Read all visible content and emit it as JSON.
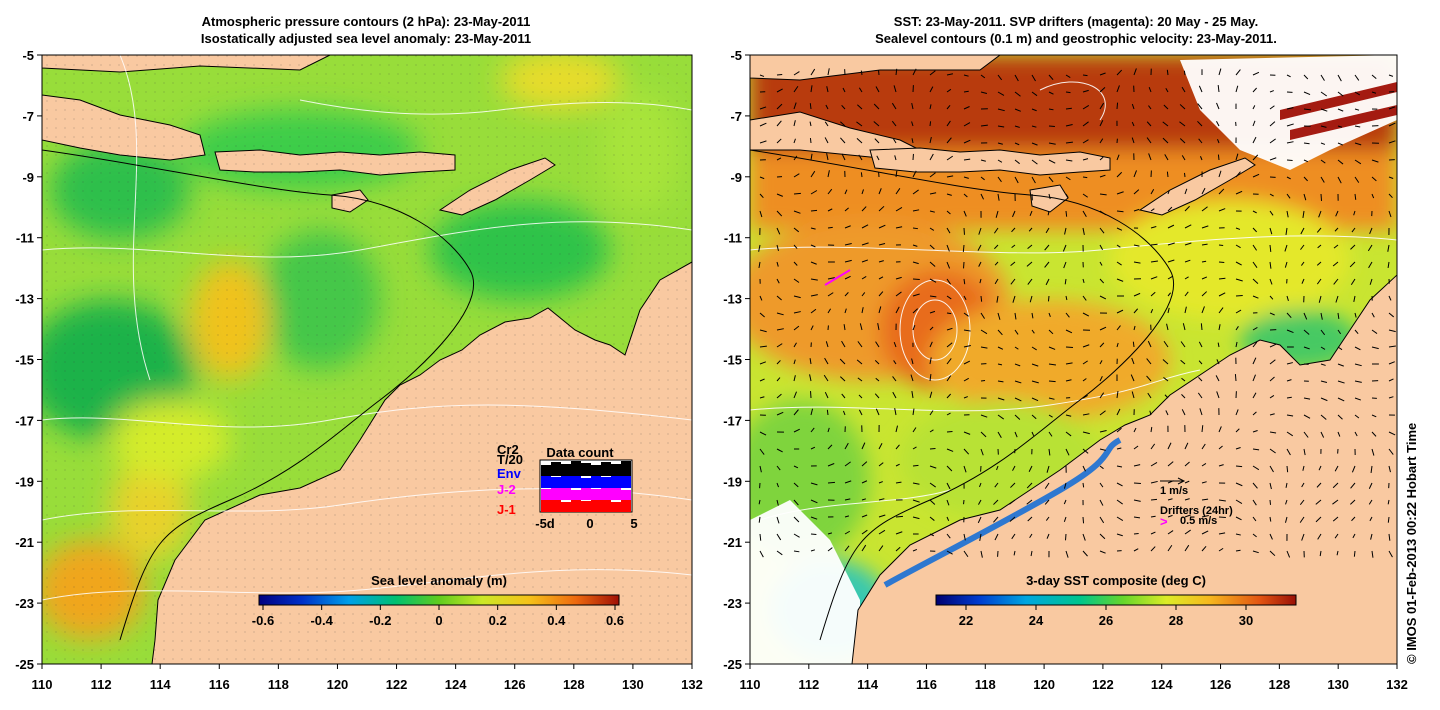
{
  "left_panel": {
    "title_line1": "Atmospheric pressure contours (2 hPa): 23-May-2011",
    "title_line2": "Isostatically adjusted sea level anomaly: 23-May-2011",
    "colorbar": {
      "label": "Sea level anomaly (m)",
      "ticks": [
        "-0.6",
        "-0.4",
        "-0.2",
        "0",
        "0.2",
        "0.4",
        "0.6"
      ]
    },
    "inset": {
      "title": "Data count",
      "satellites": [
        {
          "label": "Cr2",
          "color": "#000000"
        },
        {
          "label": "T/20",
          "color": "#000000"
        },
        {
          "label": "Env",
          "color": "#0000ff"
        },
        {
          "label": "J-2",
          "color": "#ff00ff"
        },
        {
          "label": "J-1",
          "color": "#ff0000"
        }
      ],
      "x_ticks": [
        "-5d",
        "0",
        "5"
      ]
    }
  },
  "right_panel": {
    "title_line1": "SST: 23-May-2011. SVP drifters (magenta): 20 May - 25 May.",
    "title_line2": "Sealevel contours (0.1 m) and geostrophic velocity: 23-May-2011.",
    "colorbar": {
      "label": "3-day SST composite (deg C)",
      "ticks": [
        "22",
        "24",
        "26",
        "28",
        "30"
      ]
    },
    "legend": {
      "velocity_label": "1 m/s",
      "drifters_title": "Drifters (24hr)",
      "drifters_speed": "0.5 m/s",
      "drifter_glyph": ">"
    }
  },
  "axes": {
    "lon_ticks": [
      "110",
      "112",
      "114",
      "116",
      "118",
      "120",
      "122",
      "124",
      "126",
      "128",
      "130",
      "132"
    ],
    "lat_ticks": [
      "-5",
      "-7",
      "-9",
      "-11",
      "-13",
      "-15",
      "-17",
      "-19",
      "-21",
      "-23",
      "-25"
    ]
  },
  "credit": "© IMOS 01-Feb-2013 00:22 Hobart Time",
  "colors": {
    "land": "#f9c9a1",
    "ocean_green": "#9be03b",
    "ocean_yellow": "#d7ef2b",
    "sst_orange": "#ed9a2c",
    "sst_green": "#8ed83d",
    "drifter": "#ff00ff"
  }
}
